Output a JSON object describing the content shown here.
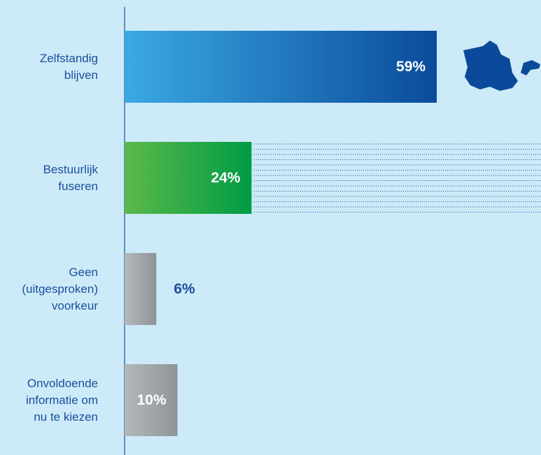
{
  "chart_data": {
    "type": "hbar",
    "categories": [
      "Zelfstandig\nblijven",
      "Bestuurlijk\nfuseren",
      "Geen\n(uitgesproken)\nvoorkeur",
      "Onvoldoende\ninformatie om\nnu te kiezen"
    ],
    "values": [
      59,
      24,
      6,
      10
    ],
    "value_labels": [
      "59%",
      "24%",
      "6%",
      "10%"
    ],
    "colors": [
      [
        "#3ba9e2",
        "#0a4b9b"
      ],
      [
        "#5bb94a",
        "#009b45"
      ],
      [
        "#b3b8bc",
        "#8e9498"
      ],
      [
        "#b3b8bc",
        "#8e9498"
      ]
    ],
    "label_color": "#1a4f9c"
  }
}
